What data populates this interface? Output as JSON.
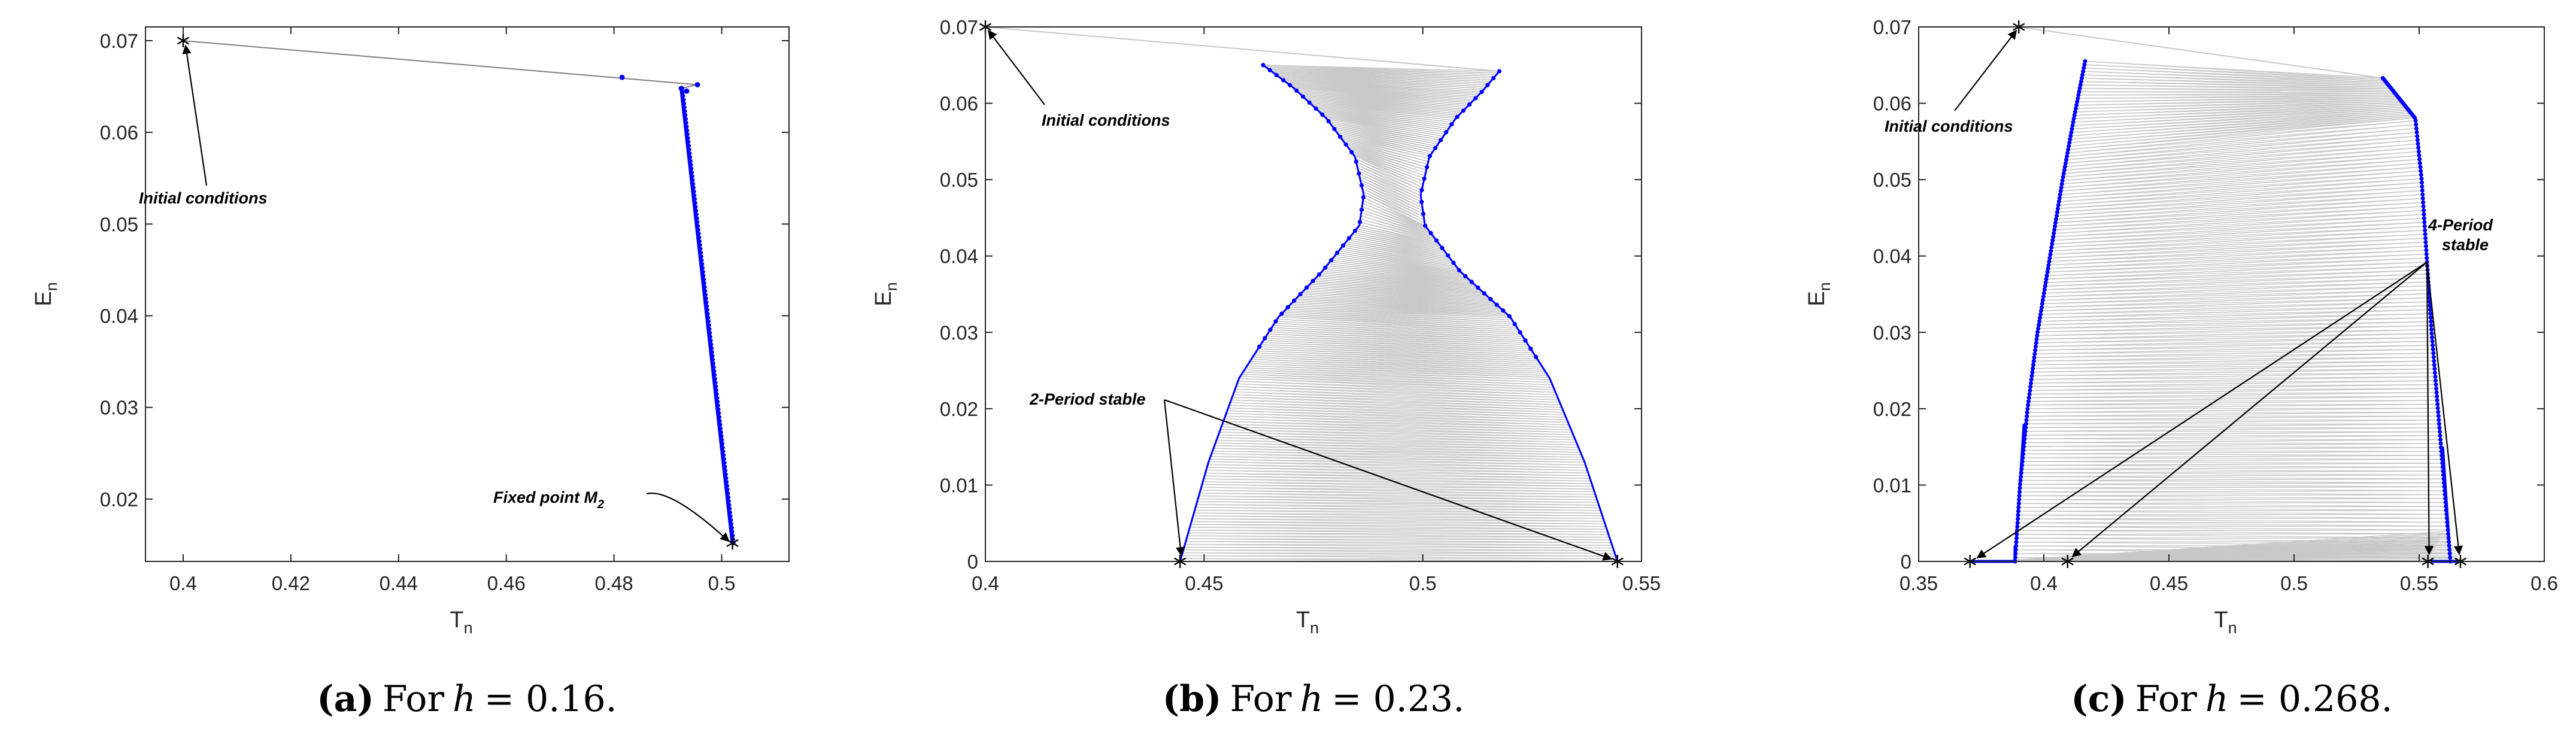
{
  "chart_data": [
    {
      "type": "scatter",
      "panel": "a",
      "xlabel": "T",
      "xlabel_sub": "n",
      "ylabel": "E",
      "ylabel_sub": "n",
      "xlim": [
        0.393,
        0.5125
      ],
      "ylim": [
        0.0132,
        0.0715
      ],
      "xticks": [
        0.4,
        0.42,
        0.44,
        0.46,
        0.48,
        0.5
      ],
      "xtick_labels": [
        "0.4",
        "0.42",
        "0.44",
        "0.46",
        "0.48",
        "0.5"
      ],
      "yticks": [
        0.02,
        0.03,
        0.04,
        0.05,
        0.06,
        0.07
      ],
      "ytick_labels": [
        "0.02",
        "0.03",
        "0.04",
        "0.05",
        "0.06",
        "0.07"
      ],
      "initial": [
        0.4,
        0.07
      ],
      "fixed_point": [
        0.502,
        0.0152
      ],
      "orbit": [
        [
          0.4,
          0.07
        ],
        [
          0.4815,
          0.066
        ],
        [
          0.4955,
          0.0652
        ],
        [
          0.4925,
          0.0648
        ],
        [
          0.4935,
          0.0645
        ],
        [
          0.502,
          0.0152
        ]
      ],
      "annotations": [
        {
          "text": "Initial conditions",
          "sub": "",
          "target": [
            0.4,
            0.07
          ]
        },
        {
          "text": "Fixed point M",
          "sub": "2",
          "target": [
            0.502,
            0.0152
          ]
        }
      ],
      "caption": {
        "label": "(a)",
        "prefix": "For",
        "var": "h",
        "value": "= 0.16."
      }
    },
    {
      "type": "scatter",
      "panel": "b",
      "xlabel": "T",
      "xlabel_sub": "n",
      "ylabel": "E",
      "ylabel_sub": "n",
      "xlim": [
        0.4,
        0.55
      ],
      "ylim": [
        0,
        0.07
      ],
      "xticks": [
        0.4,
        0.45,
        0.5,
        0.55
      ],
      "xtick_labels": [
        "0.4",
        "0.45",
        "0.5",
        "0.55"
      ],
      "yticks": [
        0,
        0.01,
        0.02,
        0.03,
        0.04,
        0.05,
        0.06,
        0.07
      ],
      "ytick_labels": [
        "0",
        "0.01",
        "0.02",
        "0.03",
        "0.04",
        "0.05",
        "0.06",
        "0.07"
      ],
      "initial": [
        0.4,
        0.07
      ],
      "period2": [
        [
          0.4445,
          0.0
        ],
        [
          0.5445,
          0.0
        ]
      ],
      "left_branch": [
        [
          0.4445,
          0.0
        ],
        [
          0.451,
          0.013
        ],
        [
          0.458,
          0.024
        ],
        [
          0.467,
          0.032
        ],
        [
          0.477,
          0.038
        ],
        [
          0.4855,
          0.044
        ],
        [
          0.4865,
          0.048
        ],
        [
          0.4845,
          0.053
        ],
        [
          0.478,
          0.058
        ],
        [
          0.4705,
          0.062
        ],
        [
          0.4635,
          0.065
        ]
      ],
      "right_branch": [
        [
          0.5445,
          0.0
        ],
        [
          0.537,
          0.013
        ],
        [
          0.529,
          0.024
        ],
        [
          0.52,
          0.032
        ],
        [
          0.5085,
          0.038
        ],
        [
          0.5005,
          0.044
        ],
        [
          0.4995,
          0.048
        ],
        [
          0.5015,
          0.053
        ],
        [
          0.5075,
          0.058
        ],
        [
          0.5135,
          0.0615
        ],
        [
          0.5175,
          0.0642
        ]
      ],
      "annotations": [
        {
          "text": "Initial conditions",
          "sub": "",
          "target": [
            0.4,
            0.07
          ]
        },
        {
          "text": "2-Period stable",
          "sub": "",
          "targets": [
            [
              0.4445,
              0.0
            ],
            [
              0.5445,
              0.0
            ]
          ]
        }
      ],
      "caption": {
        "label": "(b)",
        "prefix": "For",
        "var": "h",
        "value": "= 0.23."
      }
    },
    {
      "type": "scatter",
      "panel": "c",
      "xlabel": "T",
      "xlabel_sub": "n",
      "ylabel": "E",
      "ylabel_sub": "n",
      "xlim": [
        0.35,
        0.6
      ],
      "ylim": [
        0,
        0.07
      ],
      "xticks": [
        0.35,
        0.4,
        0.45,
        0.5,
        0.55,
        0.6
      ],
      "xtick_labels": [
        "0.35",
        "0.4",
        "0.45",
        "0.5",
        "0.55",
        "0.6"
      ],
      "yticks": [
        0,
        0.01,
        0.02,
        0.03,
        0.04,
        0.05,
        0.06,
        0.07
      ],
      "ytick_labels": [
        "0",
        "0.01",
        "0.02",
        "0.03",
        "0.04",
        "0.05",
        "0.06",
        "0.07"
      ],
      "initial": [
        0.39,
        0.07
      ],
      "period4": [
        [
          0.3705,
          0.0
        ],
        [
          0.4095,
          0.0
        ],
        [
          0.5535,
          0.0
        ],
        [
          0.5665,
          0.0
        ]
      ],
      "left_branch": [
        [
          0.3885,
          0.0
        ],
        [
          0.3905,
          0.01
        ],
        [
          0.3935,
          0.02
        ],
        [
          0.3975,
          0.03
        ],
        [
          0.4025,
          0.04
        ],
        [
          0.4075,
          0.05
        ],
        [
          0.412,
          0.058
        ],
        [
          0.4165,
          0.0655
        ]
      ],
      "right_branch": [
        [
          0.5625,
          0.0
        ],
        [
          0.56,
          0.01
        ],
        [
          0.5575,
          0.02
        ],
        [
          0.555,
          0.03
        ],
        [
          0.553,
          0.04
        ],
        [
          0.551,
          0.05
        ],
        [
          0.5485,
          0.058
        ],
        [
          0.5355,
          0.0633
        ]
      ],
      "annotations": [
        {
          "text": "Initial conditions",
          "sub": "",
          "target": [
            0.39,
            0.07
          ]
        },
        {
          "text": "4-Period",
          "text2": "stable",
          "targets": [
            [
              0.3705,
              0.0
            ],
            [
              0.4095,
              0.0
            ],
            [
              0.5535,
              0.0
            ],
            [
              0.5665,
              0.0
            ]
          ]
        }
      ],
      "caption": {
        "label": "(c)",
        "prefix": "For",
        "var": "h",
        "value": "= 0.268."
      }
    }
  ]
}
